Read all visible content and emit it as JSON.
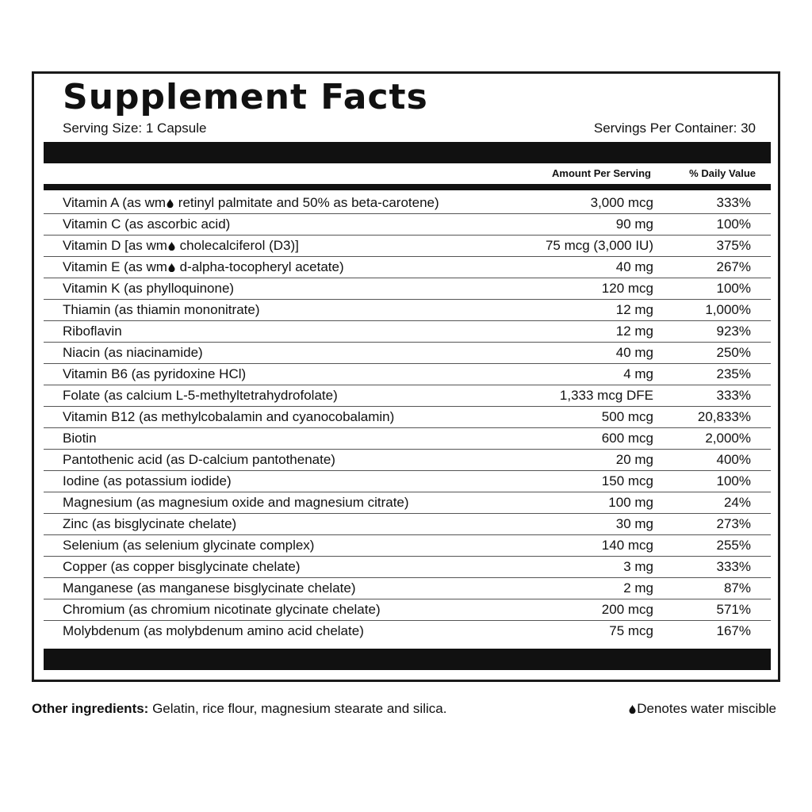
{
  "title": "Supplement Facts",
  "serving_size": "Serving Size: 1 Capsule",
  "servings_per_container": "Servings Per Container: 30",
  "columns": {
    "amount": "Amount Per Serving",
    "daily_value": "% Daily Value"
  },
  "icons": {
    "water_miscible": "water-drop-icon"
  },
  "rows": [
    {
      "pre": "Vitamin A (as wm",
      "drop": true,
      "post": " retinyl palmitate and 50% as beta-carotene)",
      "amount": "3,000 mcg",
      "dv": "333%"
    },
    {
      "pre": "Vitamin C (as ascorbic acid)",
      "drop": false,
      "post": "",
      "amount": "90 mg",
      "dv": "100%"
    },
    {
      "pre": "Vitamin D [as wm",
      "drop": true,
      "post": " cholecalciferol (D3)]",
      "amount": "75 mcg (3,000 IU)",
      "dv": "375%"
    },
    {
      "pre": "Vitamin E (as wm",
      "drop": true,
      "post": " d-alpha-tocopheryl acetate)",
      "amount": "40 mg",
      "dv": "267%"
    },
    {
      "pre": "Vitamin K (as phylloquinone)",
      "drop": false,
      "post": "",
      "amount": "120 mcg",
      "dv": "100%"
    },
    {
      "pre": "Thiamin (as thiamin mononitrate)",
      "drop": false,
      "post": "",
      "amount": "12 mg",
      "dv": "1,000%"
    },
    {
      "pre": "Riboflavin",
      "drop": false,
      "post": "",
      "amount": "12 mg",
      "dv": "923%"
    },
    {
      "pre": "Niacin (as niacinamide)",
      "drop": false,
      "post": "",
      "amount": "40 mg",
      "dv": "250%"
    },
    {
      "pre": "Vitamin B6 (as pyridoxine HCl)",
      "drop": false,
      "post": "",
      "amount": "4 mg",
      "dv": "235%"
    },
    {
      "pre": "Folate (as calcium L-5-methyltetrahydrofolate)",
      "drop": false,
      "post": "",
      "amount": "1,333 mcg DFE",
      "dv": "333%"
    },
    {
      "pre": "Vitamin B12 (as methylcobalamin and cyanocobalamin)",
      "drop": false,
      "post": "",
      "amount": "500 mcg",
      "dv": "20,833%"
    },
    {
      "pre": "Biotin",
      "drop": false,
      "post": "",
      "amount": "600 mcg",
      "dv": "2,000%"
    },
    {
      "pre": "Pantothenic acid (as D-calcium pantothenate)",
      "drop": false,
      "post": "",
      "amount": "20 mg",
      "dv": "400%"
    },
    {
      "pre": "Iodine (as potassium iodide)",
      "drop": false,
      "post": "",
      "amount": "150 mcg",
      "dv": "100%"
    },
    {
      "pre": "Magnesium (as magnesium oxide and magnesium citrate)",
      "drop": false,
      "post": "",
      "amount": "100 mg",
      "dv": "24%"
    },
    {
      "pre": "Zinc (as bisglycinate chelate)",
      "drop": false,
      "post": "",
      "amount": "30 mg",
      "dv": "273%"
    },
    {
      "pre": "Selenium (as selenium glycinate complex)",
      "drop": false,
      "post": "",
      "amount": "140 mcg",
      "dv": "255%"
    },
    {
      "pre": "Copper (as copper bisglycinate chelate)",
      "drop": false,
      "post": "",
      "amount": "3 mg",
      "dv": "333%"
    },
    {
      "pre": "Manganese (as manganese bisglycinate chelate)",
      "drop": false,
      "post": "",
      "amount": "2 mg",
      "dv": "87%"
    },
    {
      "pre": "Chromium (as chromium nicotinate glycinate chelate)",
      "drop": false,
      "post": "",
      "amount": "200 mcg",
      "dv": "571%"
    },
    {
      "pre": "Molybdenum (as molybdenum amino acid chelate)",
      "drop": false,
      "post": "",
      "amount": "75 mcg",
      "dv": "167%"
    }
  ],
  "other_ingredients": {
    "label": "Other ingredients:",
    "text": " Gelatin, rice flour, magnesium stearate and silica."
  },
  "legend": {
    "text": "Denotes water miscible"
  }
}
